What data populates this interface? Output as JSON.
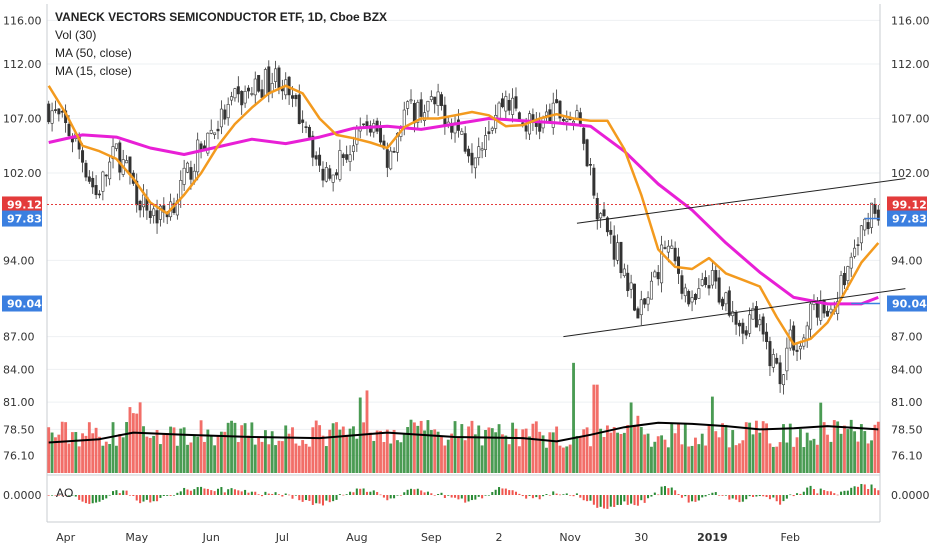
{
  "title": "VANECK VECTORS SEMICONDUCTOR ETF, 1D, Cboe BZX",
  "legend": [
    "Vol (30)",
    "MA (50, close)",
    "MA (15, close)"
  ],
  "ao_label": "AO",
  "colors": {
    "up": "#2a8a35",
    "down": "#f0554e",
    "ma15": "#f39a1e",
    "ma50": "#e81fd6",
    "vol_ma": "#000000",
    "trendline": "#222222",
    "last_price": "#e33b3b",
    "level": "#3b7fe0",
    "grid": "#eef0f3",
    "axis_text": "#333333"
  },
  "price_tags": [
    {
      "label": "99.12",
      "value": 99.12,
      "color": "#e33b3b",
      "dotted_line": true
    },
    {
      "label": "97.83",
      "value": 97.83,
      "color": "#3b7fe0"
    },
    {
      "label": "90.04",
      "value": 90.04,
      "color": "#3b7fe0"
    }
  ],
  "chart_data": {
    "type": "candlestick",
    "title": "VANECK VECTORS SEMICONDUCTOR ETF, 1D, Cboe BZX",
    "ylim": [
      74.5,
      117.5
    ],
    "y_ticks": [
      "116.00",
      "112.00",
      "107.00",
      "102.00",
      "94.00",
      "87.00",
      "84.00",
      "81.00",
      "78.50",
      "76.10"
    ],
    "x_ticks": [
      "Apr",
      "May",
      "Jun",
      "Jul",
      "Aug",
      "Sep",
      "2",
      "Nov",
      "30",
      "2019",
      "Feb"
    ],
    "ao_tick": "0.0000",
    "ma15": [
      [
        0,
        110.0
      ],
      [
        5,
        107.5
      ],
      [
        10,
        104.5
      ],
      [
        15,
        104.0
      ],
      [
        20,
        103.3
      ],
      [
        25,
        101.5
      ],
      [
        30,
        99.3
      ],
      [
        35,
        98.3
      ],
      [
        40,
        100.0
      ],
      [
        45,
        102.0
      ],
      [
        50,
        104.5
      ],
      [
        55,
        106.5
      ],
      [
        60,
        108.0
      ],
      [
        65,
        109.3
      ],
      [
        70,
        110.0
      ],
      [
        75,
        109.3
      ],
      [
        80,
        107.0
      ],
      [
        85,
        105.5
      ],
      [
        90,
        105.2
      ],
      [
        95,
        104.8
      ],
      [
        100,
        104.3
      ],
      [
        105,
        106.2
      ],
      [
        110,
        107.0
      ],
      [
        115,
        107.0
      ],
      [
        120,
        107.3
      ],
      [
        125,
        107.6
      ],
      [
        130,
        107.3
      ],
      [
        135,
        106.3
      ],
      [
        140,
        106.4
      ],
      [
        145,
        107.0
      ],
      [
        150,
        107.4
      ],
      [
        155,
        107.0
      ],
      [
        160,
        106.8
      ],
      [
        165,
        106.8
      ],
      [
        170,
        104.2
      ],
      [
        175,
        100.0
      ],
      [
        180,
        95.0
      ],
      [
        185,
        93.4
      ],
      [
        190,
        93.2
      ],
      [
        195,
        94.2
      ],
      [
        200,
        92.8
      ],
      [
        205,
        92.2
      ],
      [
        210,
        91.6
      ],
      [
        215,
        88.8
      ],
      [
        220,
        86.3
      ],
      [
        225,
        86.8
      ],
      [
        230,
        88.3
      ],
      [
        235,
        91.0
      ],
      [
        240,
        93.8
      ],
      [
        245,
        95.6
      ]
    ],
    "ma50": [
      [
        0,
        104.8
      ],
      [
        10,
        105.5
      ],
      [
        20,
        105.3
      ],
      [
        30,
        104.3
      ],
      [
        40,
        103.7
      ],
      [
        50,
        104.4
      ],
      [
        60,
        105.1
      ],
      [
        70,
        104.7
      ],
      [
        80,
        105.3
      ],
      [
        90,
        106.1
      ],
      [
        100,
        106.3
      ],
      [
        110,
        106.0
      ],
      [
        120,
        106.5
      ],
      [
        130,
        107.0
      ],
      [
        140,
        106.8
      ],
      [
        150,
        106.6
      ],
      [
        160,
        106.3
      ],
      [
        170,
        104.0
      ],
      [
        180,
        101.0
      ],
      [
        190,
        98.6
      ],
      [
        200,
        95.6
      ],
      [
        210,
        92.9
      ],
      [
        220,
        90.6
      ],
      [
        230,
        90.0
      ],
      [
        240,
        90.0
      ],
      [
        245,
        90.6
      ]
    ],
    "trendlines": [
      {
        "from": [
          152,
          87.0
        ],
        "to": [
          253,
          91.4
        ]
      },
      {
        "from": [
          156,
          97.4
        ],
        "to": [
          253,
          101.5
        ]
      }
    ],
    "volume_ma": [
      [
        0,
        77.3
      ],
      [
        15,
        77.6
      ],
      [
        25,
        78.2
      ],
      [
        40,
        78.0
      ],
      [
        60,
        77.8
      ],
      [
        80,
        77.7
      ],
      [
        100,
        78.2
      ],
      [
        120,
        77.8
      ],
      [
        140,
        77.7
      ],
      [
        150,
        77.4
      ],
      [
        160,
        78.0
      ],
      [
        170,
        78.7
      ],
      [
        180,
        79.1
      ],
      [
        190,
        79.0
      ],
      [
        200,
        78.8
      ],
      [
        210,
        78.5
      ],
      [
        220,
        78.6
      ],
      [
        230,
        78.8
      ],
      [
        245,
        78.5
      ]
    ],
    "anchors": [
      [
        0,
        108.0
      ],
      [
        8,
        105.0
      ],
      [
        14,
        100.0
      ],
      [
        20,
        104.0
      ],
      [
        28,
        99.0
      ],
      [
        33,
        98.0
      ],
      [
        38,
        100.0
      ],
      [
        46,
        105.0
      ],
      [
        55,
        108.5
      ],
      [
        62,
        110.0
      ],
      [
        68,
        111.0
      ],
      [
        72,
        108.0
      ],
      [
        76,
        107.0
      ],
      [
        80,
        102.0
      ],
      [
        85,
        103.0
      ],
      [
        90,
        104.5
      ],
      [
        95,
        106.5
      ],
      [
        100,
        103.5
      ],
      [
        105,
        107.5
      ],
      [
        110,
        108.0
      ],
      [
        115,
        108.2
      ],
      [
        120,
        106.5
      ],
      [
        125,
        104.0
      ],
      [
        130,
        106.5
      ],
      [
        135,
        109.0
      ],
      [
        140,
        106.5
      ],
      [
        145,
        106.5
      ],
      [
        150,
        107.5
      ],
      [
        155,
        107.0
      ],
      [
        158,
        105.5
      ],
      [
        162,
        99.0
      ],
      [
        166,
        96.0
      ],
      [
        170,
        93.5
      ],
      [
        174,
        88.5
      ],
      [
        177,
        90.5
      ],
      [
        182,
        95.5
      ],
      [
        186,
        93.0
      ],
      [
        190,
        89.5
      ],
      [
        195,
        92.5
      ],
      [
        198,
        91.0
      ],
      [
        202,
        90.0
      ],
      [
        205,
        88.0
      ],
      [
        208,
        89.0
      ],
      [
        212,
        86.0
      ],
      [
        216,
        83.5
      ],
      [
        219,
        87.0
      ],
      [
        222,
        86.0
      ],
      [
        226,
        90.0
      ],
      [
        230,
        89.0
      ],
      [
        233,
        91.0
      ],
      [
        237,
        94.0
      ],
      [
        240,
        96.5
      ],
      [
        243,
        99.0
      ],
      [
        245,
        98.5
      ]
    ]
  }
}
